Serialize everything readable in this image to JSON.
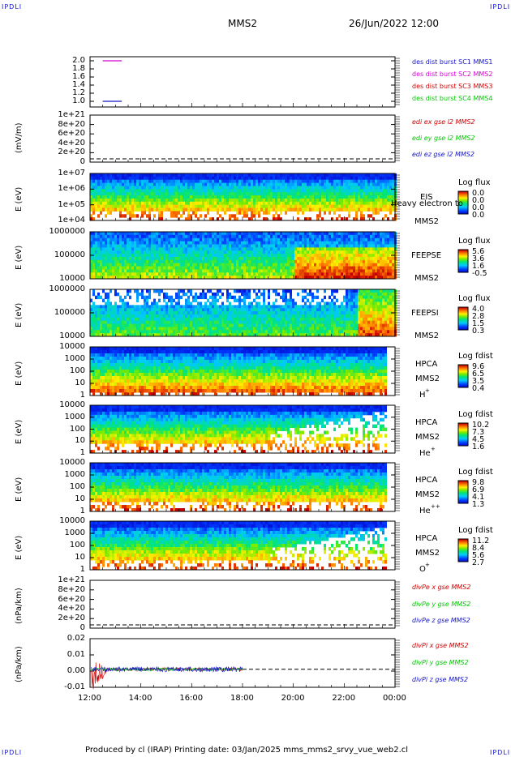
{
  "header": {
    "corner_label": "IPDLI",
    "spacecraft": "MMS2",
    "datetime": "26/Jun/2022 12:00"
  },
  "footer": {
    "text": "Produced by cl (IRAP)   Printing date: 03/Jan/2025   mms_mms2_srvy_vue_web2.cl"
  },
  "colors": {
    "blue": "#1414c8",
    "magenta": "#d200d2",
    "red": "#d20000",
    "green": "#00c800",
    "frame": "#000000"
  },
  "chart_data": {
    "type": "multi-panel time series / spectrogram stack",
    "x_axis": {
      "ticks": [
        "12:00",
        "14:00",
        "16:00",
        "18:00",
        "20:00",
        "22:00",
        "00:00"
      ],
      "range_hours": [
        12,
        24
      ]
    },
    "panels": [
      {
        "id": "burst",
        "type": "line",
        "ylabel": "",
        "ylim": [
          0.9,
          2.1
        ],
        "yticks": [
          "2.0",
          "1.8",
          "1.6",
          "1.4",
          "1.2",
          "1.0"
        ],
        "legend": [
          {
            "name": "des dist burst SC1 MMS1",
            "color": "blue"
          },
          {
            "name": "des dist burst SC2 MMS2",
            "color": "magenta"
          },
          {
            "name": "des dist burst SC3 MMS3",
            "color": "red"
          },
          {
            "name": "des dist burst SC4 MMS4",
            "color": "green"
          }
        ],
        "segments": [
          {
            "series": "des dist burst SC2 MMS2",
            "y": 2.0,
            "t": [
              12.5,
              13.25
            ]
          },
          {
            "series": "des dist burst SC1 MMS1",
            "y": 1.0,
            "t": [
              12.5,
              13.25
            ]
          }
        ]
      },
      {
        "id": "edi",
        "type": "line",
        "ylabel": "(mV/m)",
        "yticks": [
          "1e+21",
          "8e+20",
          "6e+20",
          "4e+20",
          "2e+20",
          "0"
        ],
        "legend": [
          {
            "name": "edi ex gse l2 MMS2",
            "color": "red"
          },
          {
            "name": "edi ey gse l2 MMS2",
            "color": "green"
          },
          {
            "name": "edi ez gse l2 MMS2",
            "color": "blue"
          }
        ]
      },
      {
        "id": "eis",
        "type": "heatmap",
        "ylabel": "E (eV)",
        "yticks": [
          "1e+07",
          "1e+06",
          "1e+05",
          "1e+04"
        ],
        "side": [
          "EIS",
          "MMS2"
        ],
        "overlay_text": "Heavy electron to",
        "colorbar": {
          "title": "Log flux",
          "values": [
            "0.0",
            "0.0",
            "0.0",
            "0.0"
          ]
        }
      },
      {
        "id": "feepse",
        "type": "heatmap",
        "ylabel": "E (eV)",
        "yticks": [
          "1000000",
          "100000",
          "10000"
        ],
        "side": [
          "FEEPSE",
          "MMS2"
        ],
        "colorbar": {
          "title": "Log flux",
          "values": [
            "5.6",
            "3.6",
            "1.6",
            "-0.5"
          ]
        }
      },
      {
        "id": "feepsi",
        "type": "heatmap",
        "ylabel": "E (eV)",
        "yticks": [
          "1000000",
          "100000",
          "10000"
        ],
        "side": [
          "FEEPSI",
          "MMS2"
        ],
        "colorbar": {
          "title": "Log flux",
          "values": [
            "4.0",
            "2.8",
            "1.5",
            "0.3"
          ]
        }
      },
      {
        "id": "hpca_h",
        "type": "heatmap",
        "ylabel": "E (eV)",
        "yticks": [
          "10000",
          "1000",
          "100",
          "10",
          "1"
        ],
        "side": [
          "HPCA",
          "MMS2",
          "H",
          "+"
        ],
        "colorbar": {
          "title": "Log fdist",
          "values": [
            "9.6",
            "6.5",
            "3.5",
            "0.4"
          ]
        }
      },
      {
        "id": "hpca_he",
        "type": "heatmap",
        "ylabel": "E (eV)",
        "yticks": [
          "10000",
          "1000",
          "100",
          "10",
          "1"
        ],
        "side": [
          "HPCA",
          "MMS2",
          "He",
          "+"
        ],
        "colorbar": {
          "title": "Log fdist",
          "values": [
            "10.2",
            "7.3",
            "4.5",
            "1.6"
          ]
        }
      },
      {
        "id": "hpca_hepp",
        "type": "heatmap",
        "ylabel": "E (eV)",
        "yticks": [
          "10000",
          "1000",
          "100",
          "10",
          "1"
        ],
        "side": [
          "HPCA",
          "MMS2",
          "He",
          "++"
        ],
        "colorbar": {
          "title": "Log fdist",
          "values": [
            "9.8",
            "6.9",
            "4.1",
            "1.3"
          ]
        }
      },
      {
        "id": "hpca_o",
        "type": "heatmap",
        "ylabel": "E (eV)",
        "yticks": [
          "10000",
          "1000",
          "100",
          "10",
          "1"
        ],
        "side": [
          "HPCA",
          "MMS2",
          "O",
          "+"
        ],
        "colorbar": {
          "title": "Log fdist",
          "values": [
            "11.2",
            "8.4",
            "5.6",
            "2.7"
          ]
        }
      },
      {
        "id": "divpe",
        "type": "line",
        "ylabel": "(nPa/km)",
        "yticks": [
          "1e+21",
          "8e+20",
          "6e+20",
          "4e+20",
          "2e+20",
          "0"
        ],
        "legend": [
          {
            "name": "divPe x gse MMS2",
            "color": "red"
          },
          {
            "name": "divPe y gse MMS2",
            "color": "green"
          },
          {
            "name": "divPe z gse MMS2",
            "color": "blue"
          }
        ]
      },
      {
        "id": "divpi",
        "type": "line",
        "ylabel": "(nPa/km)",
        "ylim": [
          -0.012,
          0.025
        ],
        "yticks": [
          "0.02",
          "0.01",
          "0.00",
          "-0.01"
        ],
        "legend": [
          {
            "name": "divPi x gse MMS2",
            "color": "red"
          },
          {
            "name": "divPi y gse MMS2",
            "color": "green"
          },
          {
            "name": "divPi z gse MMS2",
            "color": "blue"
          }
        ],
        "data_end_hour": 18.0
      }
    ]
  }
}
